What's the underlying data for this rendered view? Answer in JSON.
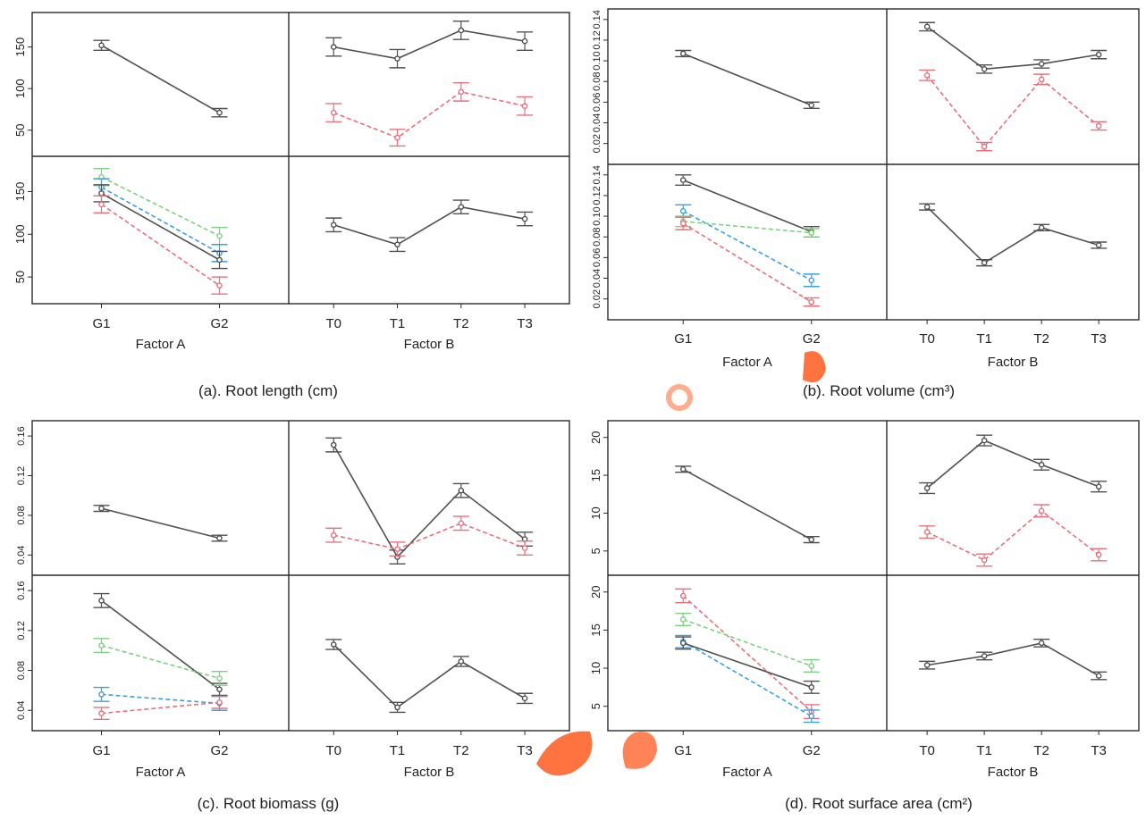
{
  "colors": {
    "black": "#505050",
    "red": "#e8707c",
    "green": "#7ed17e",
    "blue": "#3aa0e0",
    "frame": "#2a2a2a"
  },
  "watermark_color": "#ff5a1f",
  "panels": [
    {
      "caption": "(a). Root length (cm)",
      "factor_a_label": "Factor A",
      "factor_b_label": "Factor B",
      "factor_a_levels": [
        "G1",
        "G2"
      ],
      "factor_b_levels": [
        "T0",
        "T1",
        "T2",
        "T3"
      ],
      "y_ticks_top": [
        "50",
        "100",
        "150"
      ],
      "y_ticks_bottom": [
        "50",
        "100",
        "150"
      ],
      "y_ticks_rotated": true,
      "ylim": [
        25,
        185
      ]
    },
    {
      "caption": "(b). Root volume (cm³)",
      "factor_a_label": "Factor A",
      "factor_b_label": "Factor B",
      "factor_a_levels": [
        "G1",
        "G2"
      ],
      "factor_b_levels": [
        "T0",
        "T1",
        "T2",
        "T3"
      ],
      "y_ticks_top": [
        "0.02",
        "0.04",
        "0.06",
        "0.08",
        "0.10",
        "0.12",
        "0.14"
      ],
      "y_ticks_bottom": [
        "0.02",
        "0.04",
        "0.06",
        "0.08",
        "0.10",
        "0.12",
        "0.14"
      ],
      "y_ticks_rotated": true,
      "ylim": [
        0.005,
        0.145
      ]
    },
    {
      "caption": "(c). Root biomass (g)",
      "factor_a_label": "Factor A",
      "factor_b_label": "Factor B",
      "factor_a_levels": [
        "G1",
        "G2"
      ],
      "factor_b_levels": [
        "T0",
        "T1",
        "T2",
        "T3"
      ],
      "y_ticks_top": [
        "0.04",
        "0.08",
        "0.12",
        "0.16"
      ],
      "y_ticks_bottom": [
        "0.04",
        "0.08",
        "0.12",
        "0.16"
      ],
      "y_ticks_rotated": true,
      "ylim": [
        0.025,
        0.17
      ]
    },
    {
      "caption": "(d). Root surface area (cm²)",
      "factor_a_label": "Factor A",
      "factor_b_label": "Factor B",
      "factor_a_levels": [
        "G1",
        "G2"
      ],
      "factor_b_levels": [
        "T0",
        "T1",
        "T2",
        "T3"
      ],
      "y_ticks_top": [
        "5",
        "10",
        "15",
        "20"
      ],
      "y_ticks_bottom": [
        "5",
        "10",
        "15",
        "20"
      ],
      "y_ticks_rotated": true,
      "ylim": [
        2.5,
        21.5
      ]
    }
  ],
  "chart_data": [
    {
      "type": "line",
      "caption": "(a). Root length (cm)",
      "ylim": [
        25,
        185
      ],
      "cells": {
        "A_main": {
          "x": [
            "G1",
            "G2"
          ],
          "series": [
            {
              "color": "black",
              "dash": false,
              "values": [
                152,
                71
              ],
              "err": [
                6,
                5
              ]
            }
          ]
        },
        "AB": {
          "x": [
            "G1",
            "G2"
          ],
          "series": [
            {
              "color": "green",
              "dash": true,
              "values": [
                167,
                98
              ],
              "err": [
                10,
                10
              ]
            },
            {
              "color": "blue",
              "dash": true,
              "values": [
                155,
                78
              ],
              "err": [
                10,
                10
              ]
            },
            {
              "color": "black",
              "dash": false,
              "values": [
                148,
                70
              ],
              "err": [
                10,
                10
              ]
            },
            {
              "color": "red",
              "dash": true,
              "values": [
                135,
                40
              ],
              "err": [
                10,
                10
              ]
            }
          ]
        },
        "BA": {
          "x": [
            "T0",
            "T1",
            "T2",
            "T3"
          ],
          "series": [
            {
              "color": "black",
              "dash": false,
              "values": [
                150,
                136,
                170,
                157
              ],
              "err": [
                11,
                11,
                11,
                11
              ]
            },
            {
              "color": "red",
              "dash": true,
              "values": [
                71,
                41,
                96,
                79
              ],
              "err": [
                11,
                10,
                11,
                11
              ]
            }
          ]
        },
        "B_main": {
          "x": [
            "T0",
            "T1",
            "T2",
            "T3"
          ],
          "series": [
            {
              "color": "black",
              "dash": false,
              "values": [
                111,
                88,
                132,
                118
              ],
              "err": [
                8,
                8,
                8,
                8
              ]
            }
          ]
        }
      }
    },
    {
      "type": "line",
      "caption": "(b). Root volume (cm³)",
      "ylim": [
        0.005,
        0.145
      ],
      "cells": {
        "A_main": {
          "x": [
            "G1",
            "G2"
          ],
          "series": [
            {
              "color": "black",
              "dash": false,
              "values": [
                0.107,
                0.057
              ],
              "err": [
                0.003,
                0.003
              ]
            }
          ]
        },
        "AB": {
          "x": [
            "G1",
            "G2"
          ],
          "series": [
            {
              "color": "black",
              "dash": false,
              "values": [
                0.135,
                0.085
              ],
              "err": [
                0.005,
                0.005
              ]
            },
            {
              "color": "blue",
              "dash": true,
              "values": [
                0.105,
                0.038
              ],
              "err": [
                0.006,
                0.006
              ]
            },
            {
              "color": "green",
              "dash": true,
              "values": [
                0.095,
                0.084
              ],
              "err": [
                0.005,
                0.004
              ]
            },
            {
              "color": "red",
              "dash": true,
              "values": [
                0.093,
                0.017
              ],
              "err": [
                0.006,
                0.004
              ]
            }
          ]
        },
        "BA": {
          "x": [
            "T0",
            "T1",
            "T2",
            "T3"
          ],
          "series": [
            {
              "color": "black",
              "dash": false,
              "values": [
                0.133,
                0.092,
                0.097,
                0.106
              ],
              "err": [
                0.004,
                0.004,
                0.004,
                0.004
              ]
            },
            {
              "color": "red",
              "dash": true,
              "values": [
                0.086,
                0.017,
                0.082,
                0.037
              ],
              "err": [
                0.005,
                0.004,
                0.005,
                0.004
              ]
            }
          ]
        },
        "B_main": {
          "x": [
            "T0",
            "T1",
            "T2",
            "T3"
          ],
          "series": [
            {
              "color": "black",
              "dash": false,
              "values": [
                0.109,
                0.055,
                0.089,
                0.072
              ],
              "err": [
                0.003,
                0.003,
                0.003,
                0.003
              ]
            }
          ]
        }
      }
    },
    {
      "type": "line",
      "caption": "(c). Root biomass (g)",
      "ylim": [
        0.025,
        0.17
      ],
      "cells": {
        "A_main": {
          "x": [
            "G1",
            "G2"
          ],
          "series": [
            {
              "color": "black",
              "dash": false,
              "values": [
                0.087,
                0.057
              ],
              "err": [
                0.003,
                0.003
              ]
            }
          ]
        },
        "AB": {
          "x": [
            "G1",
            "G2"
          ],
          "series": [
            {
              "color": "black",
              "dash": false,
              "values": [
                0.15,
                0.061
              ],
              "err": [
                0.007,
                0.006
              ]
            },
            {
              "color": "green",
              "dash": true,
              "values": [
                0.105,
                0.072
              ],
              "err": [
                0.007,
                0.007
              ]
            },
            {
              "color": "blue",
              "dash": true,
              "values": [
                0.056,
                0.047
              ],
              "err": [
                0.007,
                0.007
              ]
            },
            {
              "color": "red",
              "dash": true,
              "values": [
                0.037,
                0.048
              ],
              "err": [
                0.006,
                0.006
              ]
            }
          ]
        },
        "BA": {
          "x": [
            "T0",
            "T1",
            "T2",
            "T3"
          ],
          "series": [
            {
              "color": "black",
              "dash": false,
              "values": [
                0.151,
                0.038,
                0.105,
                0.056
              ],
              "err": [
                0.007,
                0.007,
                0.007,
                0.007
              ]
            },
            {
              "color": "red",
              "dash": true,
              "values": [
                0.06,
                0.046,
                0.072,
                0.047
              ],
              "err": [
                0.007,
                0.007,
                0.007,
                0.007
              ]
            }
          ]
        },
        "B_main": {
          "x": [
            "T0",
            "T1",
            "T2",
            "T3"
          ],
          "series": [
            {
              "color": "black",
              "dash": false,
              "values": [
                0.106,
                0.043,
                0.089,
                0.052
              ],
              "err": [
                0.005,
                0.005,
                0.005,
                0.005
              ]
            }
          ]
        }
      }
    },
    {
      "type": "line",
      "caption": "(d). Root surface area (cm²)",
      "ylim": [
        2.5,
        21.5
      ],
      "cells": {
        "A_main": {
          "x": [
            "G1",
            "G2"
          ],
          "series": [
            {
              "color": "black",
              "dash": false,
              "values": [
                15.8,
                6.5
              ],
              "err": [
                0.4,
                0.4
              ]
            }
          ]
        },
        "AB": {
          "x": [
            "G1",
            "G2"
          ],
          "series": [
            {
              "color": "red",
              "dash": true,
              "values": [
                19.5,
                4.3
              ],
              "err": [
                0.9,
                0.9
              ]
            },
            {
              "color": "green",
              "dash": true,
              "values": [
                16.4,
                10.3
              ],
              "err": [
                0.8,
                0.8
              ]
            },
            {
              "color": "blue",
              "dash": true,
              "values": [
                13.5,
                3.7
              ],
              "err": [
                0.8,
                0.8
              ]
            },
            {
              "color": "black",
              "dash": false,
              "values": [
                13.3,
                7.5
              ],
              "err": [
                0.8,
                0.8
              ]
            }
          ]
        },
        "BA": {
          "x": [
            "T0",
            "T1",
            "T2",
            "T3"
          ],
          "series": [
            {
              "color": "black",
              "dash": false,
              "values": [
                13.3,
                19.6,
                16.4,
                13.5
              ],
              "err": [
                0.7,
                0.7,
                0.7,
                0.7
              ]
            },
            {
              "color": "red",
              "dash": true,
              "values": [
                7.5,
                3.8,
                10.3,
                4.5
              ],
              "err": [
                0.8,
                0.8,
                0.8,
                0.8
              ]
            }
          ]
        },
        "B_main": {
          "x": [
            "T0",
            "T1",
            "T2",
            "T3"
          ],
          "series": [
            {
              "color": "black",
              "dash": false,
              "values": [
                10.4,
                11.6,
                13.3,
                9.0
              ],
              "err": [
                0.5,
                0.5,
                0.5,
                0.5
              ]
            }
          ]
        }
      }
    }
  ]
}
